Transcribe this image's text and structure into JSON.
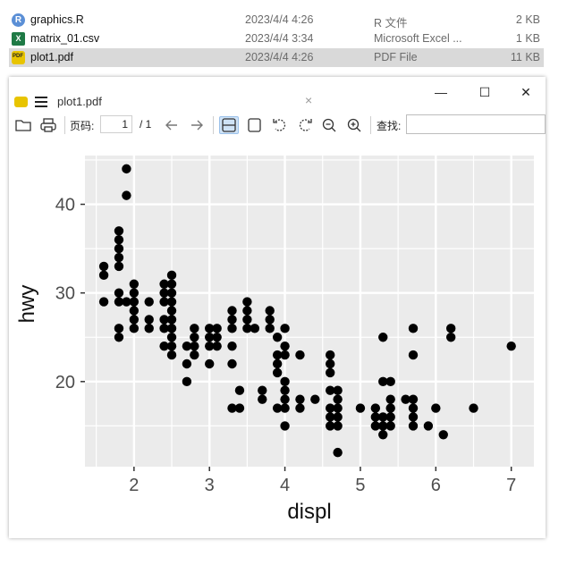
{
  "files": [
    {
      "name": "graphics.R",
      "date": "2023/4/4 4:26",
      "type": "R 文件",
      "size": "2 KB",
      "icon": "r-file-icon",
      "icon_letter": "R"
    },
    {
      "name": "matrix_01.csv",
      "date": "2023/4/4 3:34",
      "type": "Microsoft Excel ...",
      "size": "1 KB",
      "icon": "excel-file-icon",
      "icon_letter": "X"
    },
    {
      "name": "plot1.pdf",
      "date": "2023/4/4 4:26",
      "type": "PDF File",
      "size": "11 KB",
      "icon": "pdf-file-icon",
      "selected": true
    }
  ],
  "viewer": {
    "tab_title": "plot1.pdf",
    "tab_close": "×",
    "minimize": "—",
    "maximize": "☐",
    "close": "✕",
    "page_label": "页码:",
    "page_current": "1",
    "page_total": "/ 1",
    "find_label": "查找:"
  },
  "colors": {
    "panel_bg": "#ebebeb",
    "grid": "#ffffff",
    "point": "#000000",
    "selected_row": "#d9d9d9"
  },
  "chart_data": {
    "type": "scatter",
    "xlabel": "displ",
    "ylabel": "hwy",
    "xlim": [
      1.35,
      7.3
    ],
    "ylim": [
      10.4,
      45.5
    ],
    "x_ticks": [
      2,
      3,
      4,
      5,
      6,
      7
    ],
    "y_ticks": [
      20,
      30,
      40
    ],
    "grid": true,
    "points": [
      [
        1.6,
        33
      ],
      [
        1.6,
        32
      ],
      [
        1.6,
        29
      ],
      [
        1.8,
        37
      ],
      [
        1.8,
        36
      ],
      [
        1.8,
        35
      ],
      [
        1.8,
        34
      ],
      [
        1.8,
        33
      ],
      [
        1.8,
        30
      ],
      [
        1.8,
        29
      ],
      [
        1.8,
        26
      ],
      [
        1.8,
        25
      ],
      [
        1.9,
        44
      ],
      [
        1.9,
        41
      ],
      [
        1.9,
        29
      ],
      [
        2.0,
        31
      ],
      [
        2.0,
        30
      ],
      [
        2.0,
        29
      ],
      [
        2.0,
        28
      ],
      [
        2.0,
        27
      ],
      [
        2.0,
        26
      ],
      [
        2.2,
        29
      ],
      [
        2.2,
        27
      ],
      [
        2.2,
        26
      ],
      [
        2.4,
        31
      ],
      [
        2.4,
        30
      ],
      [
        2.4,
        29
      ],
      [
        2.4,
        27
      ],
      [
        2.4,
        26
      ],
      [
        2.4,
        24
      ],
      [
        2.5,
        32
      ],
      [
        2.5,
        31
      ],
      [
        2.5,
        30
      ],
      [
        2.5,
        29
      ],
      [
        2.5,
        28
      ],
      [
        2.5,
        27
      ],
      [
        2.5,
        26
      ],
      [
        2.5,
        25
      ],
      [
        2.5,
        24
      ],
      [
        2.5,
        23
      ],
      [
        2.7,
        24
      ],
      [
        2.7,
        22
      ],
      [
        2.7,
        20
      ],
      [
        2.8,
        26
      ],
      [
        2.8,
        25
      ],
      [
        2.8,
        24
      ],
      [
        2.8,
        23
      ],
      [
        3.0,
        26
      ],
      [
        3.0,
        25
      ],
      [
        3.0,
        24
      ],
      [
        3.0,
        22
      ],
      [
        3.1,
        26
      ],
      [
        3.1,
        25
      ],
      [
        3.1,
        24
      ],
      [
        3.3,
        28
      ],
      [
        3.3,
        27
      ],
      [
        3.3,
        26
      ],
      [
        3.3,
        24
      ],
      [
        3.3,
        22
      ],
      [
        3.3,
        17
      ],
      [
        3.4,
        19
      ],
      [
        3.4,
        17
      ],
      [
        3.5,
        29
      ],
      [
        3.5,
        28
      ],
      [
        3.5,
        27
      ],
      [
        3.5,
        26
      ],
      [
        3.6,
        26
      ],
      [
        3.7,
        19
      ],
      [
        3.7,
        18
      ],
      [
        3.8,
        28
      ],
      [
        3.8,
        27
      ],
      [
        3.8,
        26
      ],
      [
        3.9,
        25
      ],
      [
        3.9,
        23
      ],
      [
        3.9,
        22
      ],
      [
        3.9,
        21
      ],
      [
        3.9,
        17
      ],
      [
        4.0,
        26
      ],
      [
        4.0,
        24
      ],
      [
        4.0,
        23
      ],
      [
        4.0,
        20
      ],
      [
        4.0,
        19
      ],
      [
        4.0,
        18
      ],
      [
        4.0,
        17
      ],
      [
        4.0,
        15
      ],
      [
        4.2,
        23
      ],
      [
        4.2,
        18
      ],
      [
        4.2,
        17
      ],
      [
        4.4,
        18
      ],
      [
        4.6,
        23
      ],
      [
        4.6,
        22
      ],
      [
        4.6,
        21
      ],
      [
        4.6,
        19
      ],
      [
        4.6,
        17
      ],
      [
        4.6,
        16
      ],
      [
        4.6,
        15
      ],
      [
        4.7,
        19
      ],
      [
        4.7,
        18
      ],
      [
        4.7,
        17
      ],
      [
        4.7,
        16
      ],
      [
        4.7,
        15
      ],
      [
        4.7,
        12
      ],
      [
        5.0,
        17
      ],
      [
        5.2,
        17
      ],
      [
        5.2,
        16
      ],
      [
        5.2,
        15
      ],
      [
        5.3,
        25
      ],
      [
        5.3,
        20
      ],
      [
        5.3,
        16
      ],
      [
        5.3,
        15
      ],
      [
        5.3,
        14
      ],
      [
        5.4,
        20
      ],
      [
        5.4,
        18
      ],
      [
        5.4,
        17
      ],
      [
        5.4,
        16
      ],
      [
        5.4,
        15
      ],
      [
        5.6,
        18
      ],
      [
        5.7,
        26
      ],
      [
        5.7,
        23
      ],
      [
        5.7,
        18
      ],
      [
        5.7,
        17
      ],
      [
        5.7,
        16
      ],
      [
        5.7,
        15
      ],
      [
        5.9,
        15
      ],
      [
        6.0,
        17
      ],
      [
        6.1,
        14
      ],
      [
        6.2,
        26
      ],
      [
        6.2,
        25
      ],
      [
        6.5,
        17
      ],
      [
        7.0,
        24
      ]
    ]
  }
}
